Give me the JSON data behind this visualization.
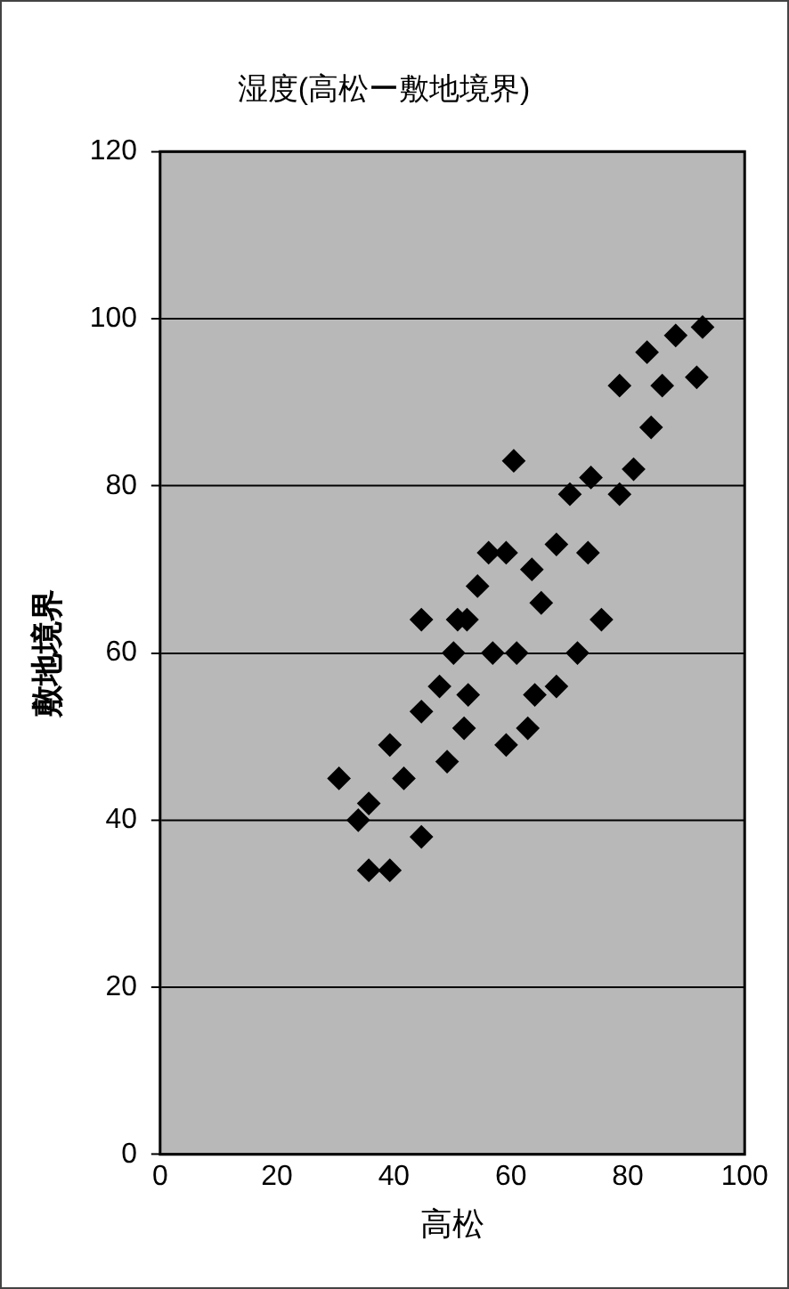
{
  "chart_data": {
    "type": "scatter",
    "title": "湿度(高松ー敷地境界)",
    "xlabel": "高松",
    "ylabel": "敷地境界",
    "xlim": [
      0,
      100
    ],
    "xticks": [
      0,
      20,
      40,
      60,
      80,
      100
    ],
    "ylim": [
      0,
      120
    ],
    "yticks": [
      0,
      20,
      40,
      60,
      80,
      100,
      120
    ],
    "grid": "y",
    "marker": "diamond",
    "legend": false,
    "series": [
      {
        "color": "#000000",
        "x": [
          92.8,
          91.8,
          88.2,
          85.9,
          83.3,
          84,
          81,
          78.6,
          78.6,
          73.7,
          75.5,
          73.2,
          70.1,
          71.4,
          67.8,
          67.8,
          65.2,
          63.6,
          64.1,
          60.5,
          59.2,
          62.9,
          61,
          56.2,
          56.9,
          59.2,
          54.3,
          50.9,
          49.1,
          52.7,
          52.5,
          52,
          50.2,
          47.8,
          44.7,
          44.7,
          44.7,
          41.7,
          39.3,
          39.3,
          35.7,
          35.7,
          33.9,
          30.6
        ],
        "values": [
          99,
          93,
          98,
          92,
          96,
          87,
          82,
          92,
          79,
          81,
          64,
          72,
          79,
          60,
          73,
          56,
          66,
          70,
          55,
          83,
          72,
          51,
          60,
          72,
          60,
          49,
          68,
          64,
          47,
          55,
          64,
          51,
          60,
          56,
          64,
          53,
          38,
          45,
          49,
          34,
          42,
          34,
          40,
          45
        ]
      }
    ]
  }
}
